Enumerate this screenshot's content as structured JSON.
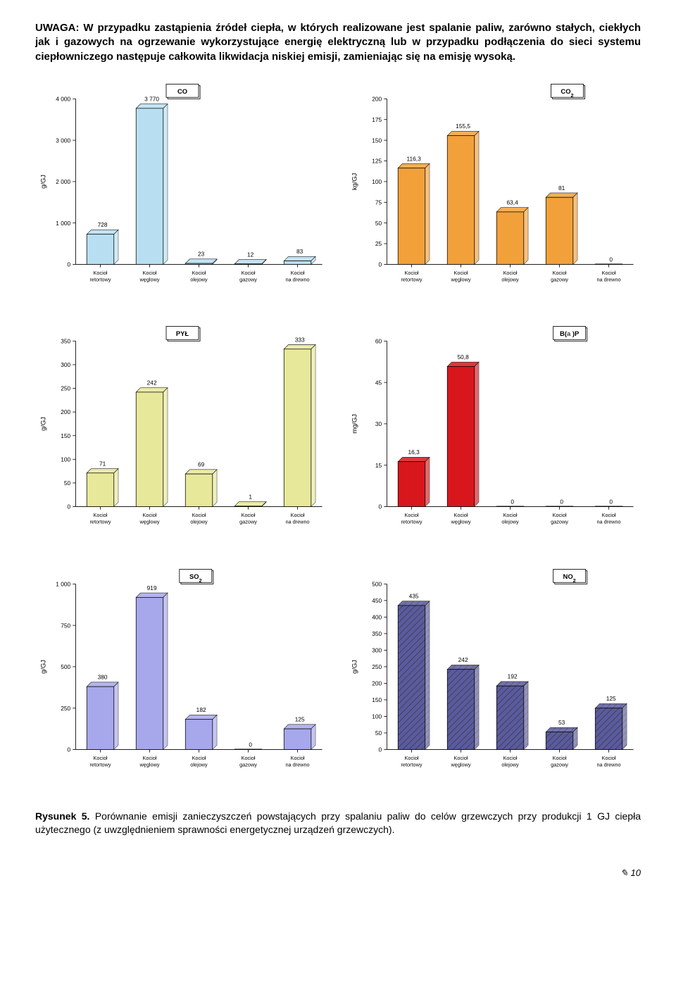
{
  "intro_text": "UWAGA: W przypadku zastąpienia źródeł ciepła, w których realizowane jest spalanie paliw, zarówno stałych, ciekłych jak i gazowych na ogrzewanie wykorzystujące energię elektryczną lub w przypadku podłączenia do sieci systemu ciepłowniczego następuje całkowita likwidacja niskiej emisji, zamieniając się na emisję wysoką.",
  "categories": [
    "Kocioł retortowy",
    "Kocioł węglowy",
    "Kocioł olejowy",
    "Kocioł gazowy",
    "Kocioł na drewno"
  ],
  "charts": [
    {
      "id": "co",
      "title_main": "CO",
      "title_sub": "",
      "ylabel": "g/GJ",
      "ymax": 4000,
      "ystep": 1000,
      "tick_fmt": "space",
      "values": [
        728,
        3770,
        23,
        12,
        83
      ],
      "fill": "#b8dff1",
      "stroke": "#000",
      "pattern": false
    },
    {
      "id": "co2",
      "title_main": "CO",
      "title_sub": "2",
      "ylabel": "kg/GJ",
      "ymax": 200,
      "ystep": 25,
      "tick_fmt": "plain",
      "values": [
        116.3,
        155.5,
        63.4,
        81,
        0
      ],
      "value_labels": [
        "116,3",
        "155,5",
        "63,4",
        "81",
        "0"
      ],
      "fill": "#f2a13a",
      "stroke": "#000",
      "pattern": false
    },
    {
      "id": "pyl",
      "title_main": "PYŁ",
      "title_sub": "",
      "ylabel": "g/GJ",
      "ymax": 350,
      "ystep": 50,
      "tick_fmt": "plain",
      "values": [
        71,
        242,
        69,
        1,
        333
      ],
      "fill": "#e8e89a",
      "stroke": "#000",
      "pattern": false
    },
    {
      "id": "bap",
      "title_main": "B(",
      "title_mid": "a",
      "title_end": " )P",
      "title_sub": "",
      "ylabel": "mg/GJ",
      "ymax": 60,
      "ystep": 15,
      "tick_fmt": "plain",
      "values": [
        16.3,
        50.8,
        0,
        0,
        0
      ],
      "value_labels": [
        "16,3",
        "50,8",
        "0",
        "0",
        "0"
      ],
      "fill": "#d8171d",
      "stroke": "#000",
      "pattern": false
    },
    {
      "id": "so2",
      "title_main": "SO",
      "title_sub": "2",
      "ylabel": "g/GJ",
      "ymax": 1000,
      "ystep": 250,
      "tick_fmt": "space",
      "values": [
        380,
        919,
        182,
        0,
        125
      ],
      "fill": "#a7a7ec",
      "stroke": "#000",
      "pattern": false
    },
    {
      "id": "no2",
      "title_main": "NO",
      "title_sub": "2",
      "ylabel": "g/GJ",
      "ymax": 500,
      "ystep": 50,
      "tick_fmt": "plain",
      "values": [
        435,
        242,
        192,
        53,
        125
      ],
      "fill": "#5a5a9e",
      "stroke": "#000",
      "pattern": true
    }
  ],
  "caption_lead": "Rysunek 5.",
  "caption_rest": " Porównanie emisji zanieczyszczeń powstających przy spalaniu paliw do celów grzewczych przy produkcji 1 GJ ciepła użytecznego (z uwzględnieniem sprawności energetycznej urządzeń grzewczych).",
  "page_icon": "✎",
  "page_number": "10"
}
